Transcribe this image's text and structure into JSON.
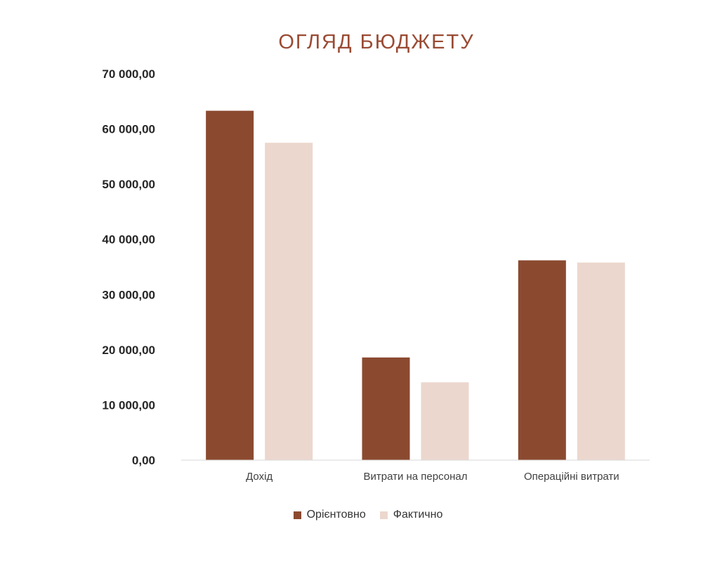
{
  "chart_data": {
    "type": "bar",
    "title": "ОГЛЯД БЮДЖЕТУ",
    "xlabel": "",
    "ylabel": "",
    "categories": [
      "Дохід",
      "Витрати на персонал",
      "Операційні витрати"
    ],
    "series": [
      {
        "name": "Орієнтовно",
        "color": "#8b4a30",
        "values": [
          63300,
          18600,
          36200
        ]
      },
      {
        "name": "Фактично",
        "color": "#ecd7ce",
        "values": [
          57500,
          14100,
          35800
        ]
      }
    ],
    "ylim": [
      0,
      70000
    ],
    "yticks": [
      0,
      10000,
      20000,
      30000,
      40000,
      50000,
      60000,
      70000
    ],
    "ytick_labels": [
      "0,00",
      "10 000,00",
      "20 000,00",
      "30 000,00",
      "40 000,00",
      "50 000,00",
      "60 000,00",
      "70 000,00"
    ],
    "grid": false,
    "legend_position": "bottom"
  }
}
